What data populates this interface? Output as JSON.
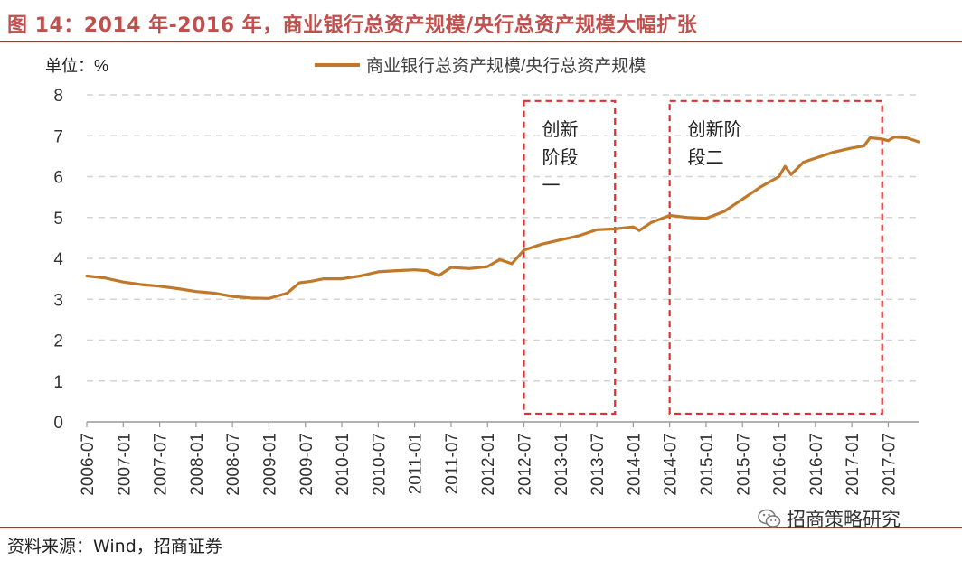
{
  "header": {
    "title": "图 14：2014 年-2016 年，商业银行总资产规模/央行总资产规模大幅扩张"
  },
  "footer": {
    "source": "资料来源：Wind，招商证券",
    "watermark": "招商策略研究",
    "watermark_icon": "wechat-icon"
  },
  "chart_data": {
    "type": "line",
    "title": "",
    "unit_label": "单位：%",
    "xlabel": "",
    "ylabel": "",
    "ylim": [
      0,
      8
    ],
    "yticks": [
      0,
      1,
      2,
      3,
      4,
      5,
      6,
      7,
      8
    ],
    "grid": "horizontal-dashed",
    "legend_placement": "top-center",
    "x_start": "2006-07",
    "x_end": "2017-12",
    "xtick_labels": [
      "2006-07",
      "2007-01",
      "2007-07",
      "2008-01",
      "2008-07",
      "2009-01",
      "2009-07",
      "2010-01",
      "2010-07",
      "2011-01",
      "2011-07",
      "2012-01",
      "2012-07",
      "2013-01",
      "2013-07",
      "2014-01",
      "2014-07",
      "2015-01",
      "2015-07",
      "2016-01",
      "2016-07",
      "2017-01",
      "2017-07"
    ],
    "series": [
      {
        "name": "商业银行总资产规模/央行总资产规模",
        "color": "#c0782a",
        "points": [
          [
            "2006-07",
            3.57
          ],
          [
            "2006-10",
            3.52
          ],
          [
            "2007-01",
            3.42
          ],
          [
            "2007-04",
            3.36
          ],
          [
            "2007-07",
            3.32
          ],
          [
            "2007-10",
            3.26
          ],
          [
            "2008-01",
            3.19
          ],
          [
            "2008-04",
            3.15
          ],
          [
            "2008-07",
            3.07
          ],
          [
            "2008-10",
            3.03
          ],
          [
            "2009-01",
            3.02
          ],
          [
            "2009-04",
            3.15
          ],
          [
            "2009-06",
            3.4
          ],
          [
            "2009-08",
            3.44
          ],
          [
            "2009-10",
            3.5
          ],
          [
            "2010-01",
            3.5
          ],
          [
            "2010-04",
            3.57
          ],
          [
            "2010-07",
            3.67
          ],
          [
            "2010-10",
            3.7
          ],
          [
            "2011-01",
            3.72
          ],
          [
            "2011-03",
            3.7
          ],
          [
            "2011-05",
            3.58
          ],
          [
            "2011-07",
            3.78
          ],
          [
            "2011-10",
            3.75
          ],
          [
            "2012-01",
            3.8
          ],
          [
            "2012-03",
            3.97
          ],
          [
            "2012-05",
            3.87
          ],
          [
            "2012-07",
            4.2
          ],
          [
            "2012-10",
            4.35
          ],
          [
            "2013-01",
            4.45
          ],
          [
            "2013-04",
            4.55
          ],
          [
            "2013-07",
            4.7
          ],
          [
            "2013-10",
            4.72
          ],
          [
            "2014-01",
            4.77
          ],
          [
            "2014-02",
            4.68
          ],
          [
            "2014-04",
            4.88
          ],
          [
            "2014-07",
            5.05
          ],
          [
            "2014-10",
            5.0
          ],
          [
            "2015-01",
            4.98
          ],
          [
            "2015-04",
            5.15
          ],
          [
            "2015-07",
            5.45
          ],
          [
            "2015-10",
            5.75
          ],
          [
            "2016-01",
            6.0
          ],
          [
            "2016-02",
            6.25
          ],
          [
            "2016-03",
            6.05
          ],
          [
            "2016-05",
            6.35
          ],
          [
            "2016-07",
            6.45
          ],
          [
            "2016-10",
            6.6
          ],
          [
            "2017-01",
            6.7
          ],
          [
            "2017-03",
            6.75
          ],
          [
            "2017-04",
            6.95
          ],
          [
            "2017-06",
            6.92
          ],
          [
            "2017-07",
            6.88
          ],
          [
            "2017-08",
            6.97
          ],
          [
            "2017-10",
            6.95
          ],
          [
            "2017-12",
            6.85
          ]
        ]
      }
    ],
    "annotations": [
      {
        "name": "innovation-stage-1",
        "lines": [
          "创新",
          "阶段",
          "一"
        ],
        "from": "2012-07",
        "to": "2013-10",
        "y_from": 0.2,
        "y_to": 7.85,
        "color": "#e03030"
      },
      {
        "name": "innovation-stage-2",
        "lines": [
          "创新阶",
          "段二"
        ],
        "from": "2014-07",
        "to": "2017-06",
        "y_from": 0.2,
        "y_to": 7.85,
        "color": "#e03030"
      }
    ]
  }
}
